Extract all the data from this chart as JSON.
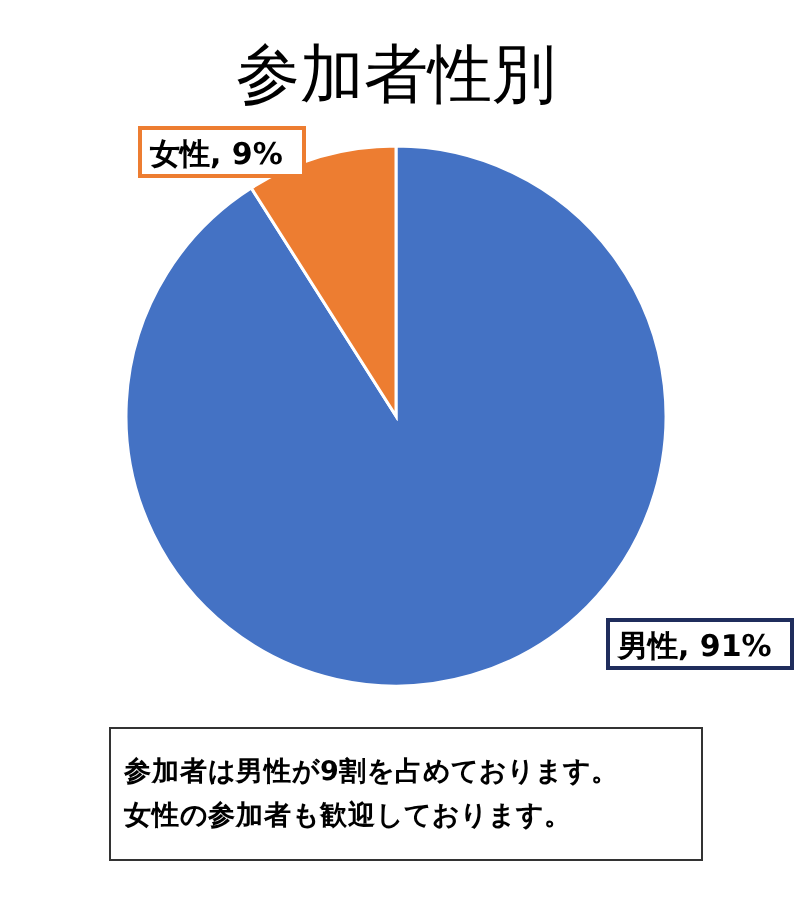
{
  "chart_data": {
    "type": "pie",
    "title": "参加者性別",
    "categories": [
      "男性",
      "女性"
    ],
    "values": [
      91,
      9
    ],
    "colors": [
      "#4472c4",
      "#ed7d31"
    ],
    "value_labels": [
      "91%",
      "9%"
    ],
    "annotations": [
      "参加者は男性が9割を占めております。",
      "女性の参加者も歓迎しております。"
    ],
    "legend": false
  }
}
